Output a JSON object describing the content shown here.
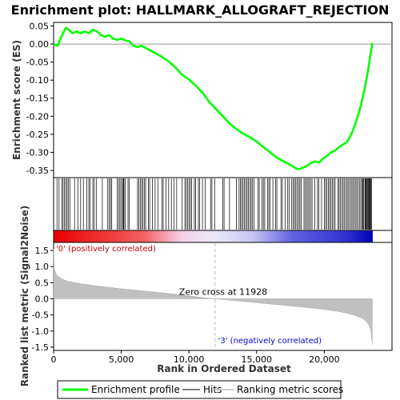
{
  "chart_data": {
    "type": "line",
    "title": "Enrichment plot: HALLMARK_ALLOGRAFT_REJECTION",
    "xlabel": "Rank in Ordered Dataset",
    "ylabel_top": "Enrichment score (ES)",
    "ylabel_bottom": "Ranked list metric (Signal2Noise)",
    "x_ticks": [
      0,
      5000,
      10000,
      15000,
      20000
    ],
    "x_tick_labels": [
      "0",
      "5,000",
      "10,000",
      "15,000",
      "20,000"
    ],
    "xlim": [
      0,
      24000
    ],
    "es_yticks": [
      0.05,
      0.0,
      -0.05,
      -0.1,
      -0.15,
      -0.2,
      -0.25,
      -0.3,
      -0.35
    ],
    "es_ytick_labels": [
      "0.05",
      "0.00",
      "-0.05",
      "-0.10",
      "-0.15",
      "-0.20",
      "-0.25",
      "-0.30",
      "-0.35"
    ],
    "es_ylim": [
      -0.37,
      0.06
    ],
    "metric_yticks": [
      1.5,
      1.0,
      0.5,
      0.0,
      -0.5,
      -1.0,
      -1.5
    ],
    "metric_ytick_labels": [
      "1.5",
      "1.0",
      "0.5",
      "0.0",
      "-0.5",
      "-1.0",
      "-1.5"
    ],
    "metric_ylim": [
      -1.6,
      1.75
    ],
    "enrichment_profile": {
      "name": "Enrichment profile",
      "color": "#00ff00",
      "x": [
        0,
        300,
        500,
        700,
        900,
        1100,
        1400,
        1700,
        2000,
        2300,
        2600,
        2900,
        3200,
        3500,
        3800,
        4100,
        4400,
        4700,
        5000,
        5300,
        5600,
        5900,
        6200,
        6500,
        7000,
        7500,
        8000,
        8500,
        9000,
        9500,
        10000,
        10500,
        11000,
        11500,
        12000,
        12500,
        13000,
        13500,
        14000,
        14500,
        15000,
        15500,
        16000,
        16500,
        17000,
        17500,
        17800,
        18100,
        18400,
        18700,
        19000,
        19300,
        19600,
        19900,
        20200,
        20500,
        20800,
        21100,
        21400,
        21700,
        22000,
        22300,
        22600,
        22800,
        23000,
        23200,
        23350,
        23500,
        23550
      ],
      "y": [
        0.0,
        -0.005,
        0.015,
        0.03,
        0.045,
        0.04,
        0.03,
        0.035,
        0.03,
        0.035,
        0.03,
        0.04,
        0.035,
        0.025,
        0.02,
        0.025,
        0.015,
        0.012,
        0.015,
        0.01,
        0.008,
        -0.005,
        -0.008,
        -0.005,
        -0.015,
        -0.025,
        -0.035,
        -0.048,
        -0.065,
        -0.085,
        -0.098,
        -0.115,
        -0.135,
        -0.16,
        -0.18,
        -0.2,
        -0.22,
        -0.235,
        -0.248,
        -0.258,
        -0.27,
        -0.285,
        -0.3,
        -0.315,
        -0.325,
        -0.335,
        -0.342,
        -0.347,
        -0.343,
        -0.338,
        -0.33,
        -0.325,
        -0.328,
        -0.318,
        -0.31,
        -0.3,
        -0.295,
        -0.285,
        -0.278,
        -0.27,
        -0.25,
        -0.22,
        -0.185,
        -0.155,
        -0.12,
        -0.08,
        -0.045,
        -0.01,
        0.003
      ]
    },
    "hits_label": "Hits",
    "hits": [
      250,
      400,
      600,
      700,
      800,
      900,
      1000,
      1100,
      1200,
      1550,
      1800,
      2000,
      2200,
      2450,
      2600,
      2700,
      2900,
      3000,
      3150,
      3600,
      4000,
      4100,
      4200,
      4300,
      4700,
      4800,
      4900,
      5000,
      5100,
      5150,
      5200,
      5300,
      5500,
      5600,
      6200,
      6300,
      6400,
      6500,
      6600,
      6700,
      6800,
      7000,
      7100,
      7300,
      7500,
      7700,
      8000,
      8100,
      8300,
      8500,
      8700,
      8900,
      9100,
      9500,
      9700,
      9800,
      9900,
      10000,
      10100,
      10200,
      10400,
      10500,
      10700,
      10800,
      11000,
      11200,
      11600,
      11700,
      11900,
      12500,
      12600,
      13000,
      13500,
      13700,
      13800,
      13900,
      14000,
      14100,
      14200,
      14300,
      14400,
      14500,
      14600,
      14700,
      14800,
      15100,
      15200,
      15400,
      15500,
      15600,
      15800,
      15900,
      16000,
      16200,
      16400,
      16500,
      16800,
      16900,
      17100,
      17300,
      17400,
      17600,
      17700,
      17800,
      17900,
      18000,
      18100,
      18200,
      18300,
      18500,
      18600,
      18700,
      18800,
      18900,
      19000,
      19100,
      19300,
      19500,
      19600,
      19800,
      20000,
      20100,
      20200,
      20300,
      20400,
      20500,
      20600,
      20700,
      20800,
      21000,
      21100,
      21200,
      21300,
      21400,
      21500,
      21600,
      21700,
      21800,
      21900,
      22000,
      22100,
      22200,
      22300,
      22400,
      22500,
      22600,
      22700,
      22800,
      22850,
      22900,
      23000,
      23050,
      23100,
      23150,
      23200,
      23250,
      23300,
      23350,
      23400,
      23450,
      23500
    ],
    "ranking_metric": {
      "name": "Ranking metric scores",
      "color": "#c0c0c0",
      "x": [
        0,
        50,
        150,
        300,
        600,
        1000,
        2000,
        3000,
        4000,
        5000,
        6000,
        7000,
        8000,
        9000,
        10000,
        11000,
        11928,
        13000,
        14000,
        15000,
        16000,
        17000,
        18000,
        19000,
        20000,
        21000,
        21500,
        22000,
        22500,
        22800,
        23000,
        23200,
        23350,
        23450,
        23550
      ],
      "y": [
        1.55,
        0.95,
        0.8,
        0.7,
        0.62,
        0.55,
        0.47,
        0.41,
        0.36,
        0.31,
        0.27,
        0.23,
        0.19,
        0.14,
        0.09,
        0.04,
        0.0,
        -0.04,
        -0.08,
        -0.12,
        -0.16,
        -0.2,
        -0.24,
        -0.28,
        -0.33,
        -0.39,
        -0.43,
        -0.48,
        -0.55,
        -0.6,
        -0.66,
        -0.75,
        -0.85,
        -1.0,
        -1.42
      ]
    },
    "zero_cross_label": "Zero cross at 11928",
    "zero_cross_x": 11928,
    "positive_label": "'0' (positively correlated)",
    "negative_label": "'3' (negatively correlated)",
    "positive_color": "#cc0000",
    "negative_color": "#0000cc",
    "grid": false,
    "legend_placement": "bottom"
  }
}
